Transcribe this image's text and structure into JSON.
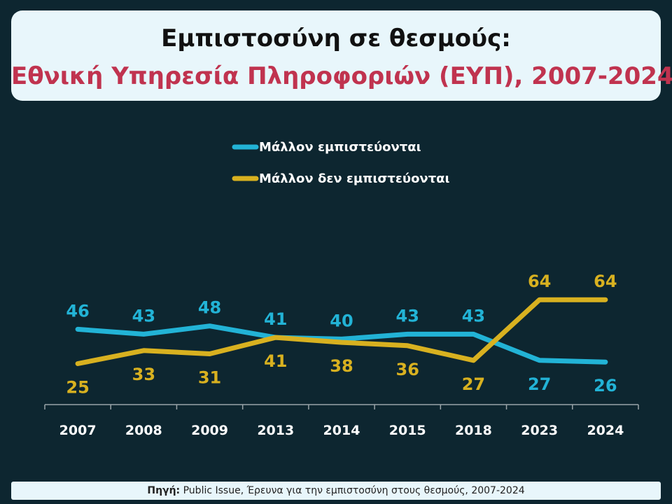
{
  "header": {
    "title": "Εμπιστοσύνη σε θεσμούς:",
    "subtitle": "Εθνική Υπηρεσία Πληροφοριών (ΕΥΠ), 2007-2024"
  },
  "footer": {
    "source_label": "Πηγή:",
    "source_text": " Public Issue, Έρευνα για την εμπιστοσύνη στους θεσμούς, 2007-2024"
  },
  "colors": {
    "background": "#0d2630",
    "panel": "#e8f6fb",
    "subtitle": "#c0334f",
    "trust": "#22b3d6",
    "distrust": "#d8b120"
  },
  "chart_data": {
    "type": "line",
    "categories": [
      "2007",
      "2008",
      "2009",
      "2013",
      "2014",
      "2015",
      "2018",
      "2023",
      "2024"
    ],
    "series": [
      {
        "name": "Μάλλον εμπιστεύονται",
        "values": [
          46,
          43,
          48,
          41,
          40,
          43,
          43,
          27,
          26
        ]
      },
      {
        "name": "Μάλλον δεν εμπιστεύονται",
        "values": [
          25,
          33,
          31,
          41,
          38,
          36,
          27,
          64,
          64
        ]
      }
    ],
    "ylim": [
      0,
      90
    ],
    "grid": false,
    "legend": "top-center",
    "data_labels": true
  }
}
